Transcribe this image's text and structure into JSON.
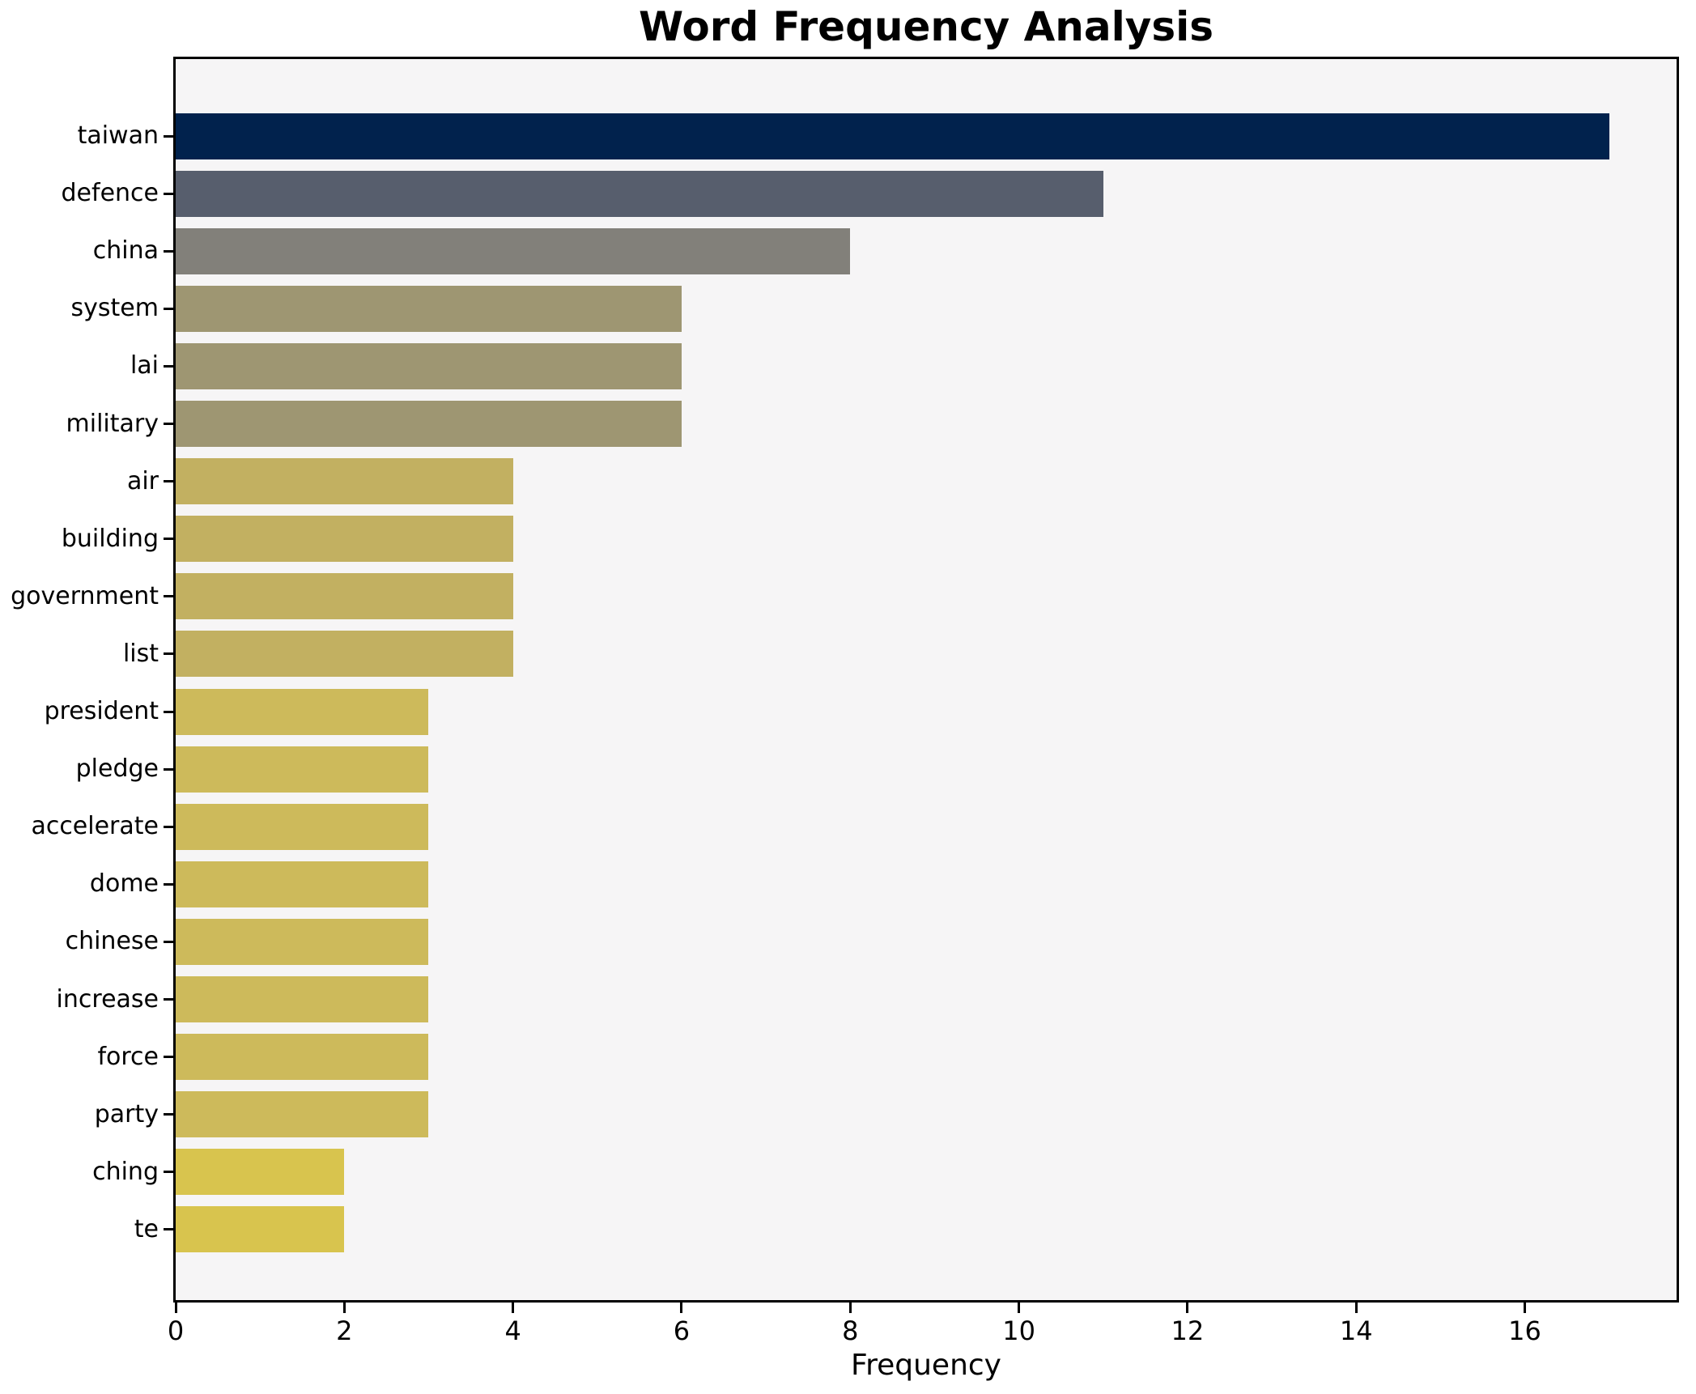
{
  "chart_data": {
    "type": "bar",
    "orientation": "horizontal",
    "title": "Word Frequency Analysis",
    "xlabel": "Frequency",
    "ylabel": "",
    "grid": false,
    "legend_position": "none",
    "xlim": [
      0,
      17.8
    ],
    "xticks": [
      0,
      2,
      4,
      6,
      8,
      10,
      12,
      14,
      16
    ],
    "categories": [
      "taiwan",
      "defence",
      "china",
      "system",
      "lai",
      "military",
      "air",
      "building",
      "government",
      "list",
      "president",
      "pledge",
      "accelerate",
      "dome",
      "chinese",
      "increase",
      "force",
      "party",
      "ching",
      "te"
    ],
    "values": [
      17,
      11,
      8,
      6,
      6,
      6,
      4,
      4,
      4,
      4,
      3,
      3,
      3,
      3,
      3,
      3,
      3,
      3,
      2,
      2
    ],
    "bar_colors": [
      "#01224d",
      "#575e6d",
      "#82807a",
      "#9e9672",
      "#9e9672",
      "#9e9672",
      "#c2b061",
      "#c2b061",
      "#c2b061",
      "#c2b061",
      "#cdba5b",
      "#cdba5b",
      "#cdba5b",
      "#cdba5b",
      "#cdba5b",
      "#cdba5b",
      "#cdba5b",
      "#cdba5b",
      "#d8c44e",
      "#d8c44e"
    ],
    "colors": {
      "figure_background": "#ffffff",
      "plot_background": "#f6f5f6",
      "spine": "#000000",
      "text": "#000000"
    }
  }
}
